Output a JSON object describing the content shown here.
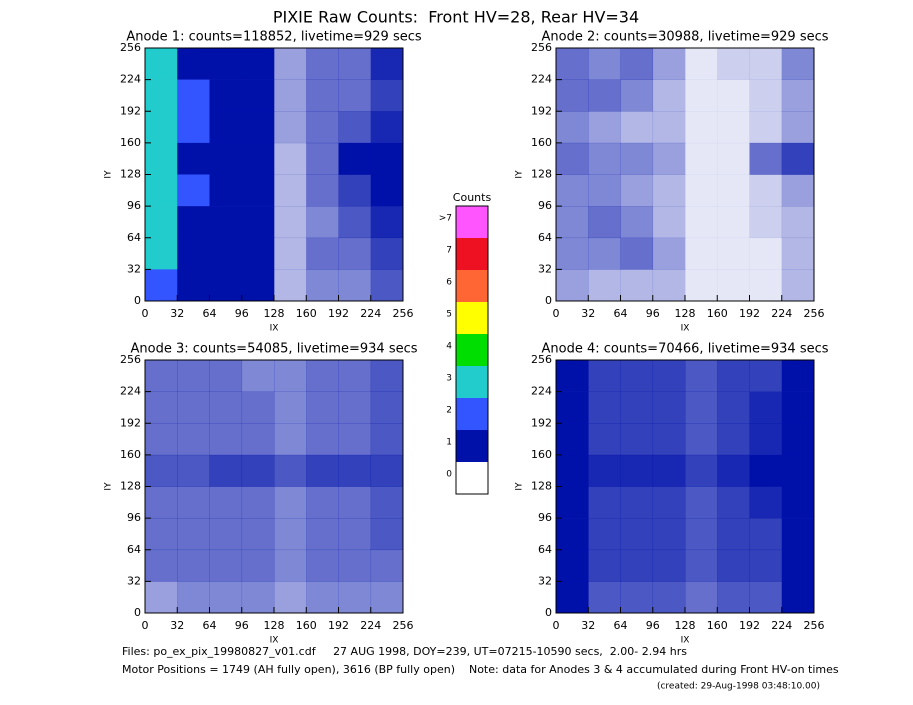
{
  "title": "PIXIE Raw Counts:  Front HV=28, Rear HV=34",
  "chart_data": [
    {
      "type": "heatmap",
      "title": "Anode 1: counts=118852, livetime=929 secs",
      "xlabel": "IX",
      "ylabel": "IY",
      "xlim": [
        0,
        256
      ],
      "ylim": [
        0,
        256
      ],
      "xticks": [
        0,
        32,
        64,
        96,
        128,
        160,
        192,
        224,
        256
      ],
      "yticks": [
        0,
        32,
        64,
        96,
        128,
        160,
        192,
        224,
        256
      ],
      "z": [
        [
          3,
          1.8,
          1.5,
          1.5,
          0.4,
          0.6,
          0.6,
          0.9
        ],
        [
          3,
          2,
          1.8,
          1.5,
          0.4,
          0.6,
          0.6,
          0.8
        ],
        [
          3,
          2,
          1.8,
          1.4,
          0.4,
          0.6,
          0.7,
          0.9
        ],
        [
          3,
          1.8,
          1.5,
          1.2,
          0.3,
          0.6,
          1.2,
          1.6
        ],
        [
          3,
          2,
          1.8,
          1.4,
          0.3,
          0.6,
          0.8,
          1
        ],
        [
          3,
          1.8,
          1.5,
          1.2,
          0.3,
          0.5,
          0.7,
          0.9
        ],
        [
          3,
          1.8,
          1.6,
          1.2,
          0.3,
          0.6,
          0.6,
          0.8
        ],
        [
          2.5,
          1.5,
          1.3,
          1,
          0.3,
          0.5,
          0.5,
          0.7
        ]
      ]
    },
    {
      "type": "heatmap",
      "title": "Anode 2: counts=30988, livetime=929 secs",
      "xlabel": "IX",
      "ylabel": "IY",
      "xlim": [
        0,
        256
      ],
      "ylim": [
        0,
        256
      ],
      "xticks": [
        0,
        32,
        64,
        96,
        128,
        160,
        192,
        224,
        256
      ],
      "yticks": [
        0,
        32,
        64,
        96,
        128,
        160,
        192,
        224,
        256
      ],
      "z": [
        [
          0.6,
          0.5,
          0.6,
          0.4,
          0.1,
          0.2,
          0.2,
          0.5
        ],
        [
          0.6,
          0.6,
          0.5,
          0.3,
          0.1,
          0.1,
          0.2,
          0.4
        ],
        [
          0.5,
          0.4,
          0.3,
          0.3,
          0.1,
          0.1,
          0.2,
          0.4
        ],
        [
          0.6,
          0.5,
          0.5,
          0.4,
          0.1,
          0.1,
          0.6,
          0.8
        ],
        [
          0.5,
          0.5,
          0.4,
          0.3,
          0.1,
          0.1,
          0.2,
          0.4
        ],
        [
          0.5,
          0.6,
          0.5,
          0.3,
          0.1,
          0.1,
          0.2,
          0.3
        ],
        [
          0.5,
          0.5,
          0.6,
          0.4,
          0.1,
          0.1,
          0.1,
          0.3
        ],
        [
          0.4,
          0.3,
          0.3,
          0.3,
          0.1,
          0.1,
          0.1,
          0.3
        ]
      ]
    },
    {
      "type": "heatmap",
      "title": "Anode 3: counts=54085, livetime=934 secs",
      "xlabel": "IX",
      "ylabel": "IY",
      "xlim": [
        0,
        256
      ],
      "ylim": [
        0,
        256
      ],
      "xticks": [
        0,
        32,
        64,
        96,
        128,
        160,
        192,
        224,
        256
      ],
      "yticks": [
        0,
        32,
        64,
        96,
        128,
        160,
        192,
        224,
        256
      ],
      "z": [
        [
          0.6,
          0.6,
          0.6,
          0.5,
          0.5,
          0.6,
          0.6,
          0.7
        ],
        [
          0.6,
          0.6,
          0.6,
          0.6,
          0.5,
          0.6,
          0.6,
          0.7
        ],
        [
          0.6,
          0.6,
          0.6,
          0.6,
          0.5,
          0.6,
          0.6,
          0.7
        ],
        [
          0.7,
          0.7,
          0.8,
          0.8,
          0.7,
          0.8,
          0.8,
          0.8
        ],
        [
          0.6,
          0.6,
          0.6,
          0.6,
          0.5,
          0.6,
          0.6,
          0.7
        ],
        [
          0.6,
          0.6,
          0.6,
          0.6,
          0.5,
          0.6,
          0.6,
          0.7
        ],
        [
          0.6,
          0.6,
          0.6,
          0.6,
          0.5,
          0.6,
          0.6,
          0.6
        ],
        [
          0.4,
          0.5,
          0.5,
          0.5,
          0.4,
          0.5,
          0.5,
          0.5
        ]
      ]
    },
    {
      "type": "heatmap",
      "title": "Anode 4: counts=70466, livetime=934 secs",
      "xlabel": "IX",
      "ylabel": "IY",
      "xlim": [
        0,
        256
      ],
      "ylim": [
        0,
        256
      ],
      "xticks": [
        0,
        32,
        64,
        96,
        128,
        160,
        192,
        224,
        256
      ],
      "yticks": [
        0,
        32,
        64,
        96,
        128,
        160,
        192,
        224,
        256
      ],
      "z": [
        [
          1.2,
          0.8,
          0.8,
          0.8,
          0.7,
          0.8,
          0.8,
          1.5
        ],
        [
          1.2,
          0.8,
          0.8,
          0.8,
          0.7,
          0.8,
          0.9,
          1.5
        ],
        [
          1.2,
          0.8,
          0.8,
          0.8,
          0.7,
          0.8,
          0.9,
          1.5
        ],
        [
          1.3,
          0.9,
          0.9,
          0.9,
          0.8,
          0.9,
          1,
          1.6
        ],
        [
          1.2,
          0.8,
          0.8,
          0.8,
          0.7,
          0.8,
          0.9,
          1.5
        ],
        [
          1.2,
          0.8,
          0.8,
          0.8,
          0.7,
          0.8,
          0.8,
          1.5
        ],
        [
          1.3,
          0.8,
          0.8,
          0.8,
          0.7,
          0.8,
          0.8,
          1.5
        ],
        [
          1,
          0.7,
          0.7,
          0.7,
          0.6,
          0.7,
          0.7,
          1.2
        ]
      ]
    }
  ],
  "colorbar": {
    "title": "Counts",
    "labels": [
      ">7",
      "7",
      "6",
      "5",
      "4",
      "3",
      "2",
      "1",
      "0"
    ],
    "colors": [
      "#ff55ff",
      "#ee1122",
      "#ff6633",
      "#ffff00",
      "#00dd00",
      "#22cccc",
      "#3355ff",
      "#0011aa",
      "#ffffff"
    ]
  },
  "footer": [
    "Files: po_ex_pix_19980827_v01.cdf     27 AUG 1998, DOY=239, UT=07215-10590 secs,  2.00- 2.94 hrs",
    "Motor Positions = 1749 (AH fully open), 3616 (BP fully open)    Note: data for Anodes 3 & 4 accumulated during Front HV-on times",
    "(created: 29-Aug-1998 03:48:10.00)"
  ]
}
